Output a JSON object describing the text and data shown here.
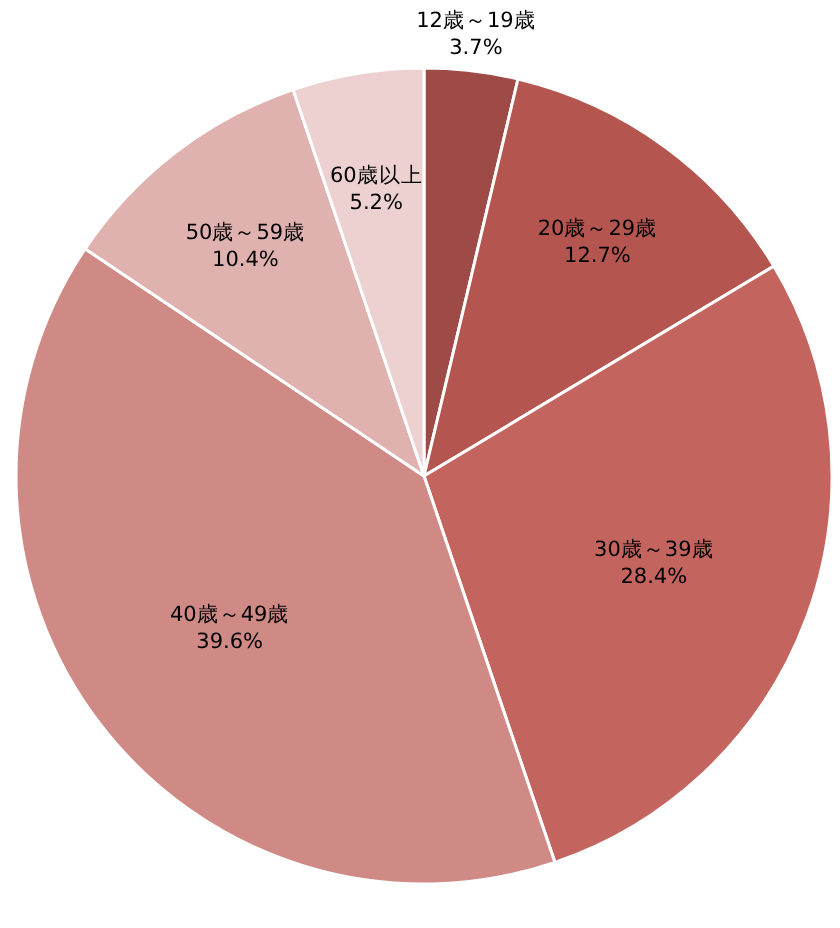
{
  "chart_data": {
    "type": "pie",
    "categories": [
      "12歳～19歳",
      "20歳～29歳",
      "30歳～39歳",
      "40歳～49歳",
      "50歳～59歳",
      "60歳以上"
    ],
    "values": [
      3.7,
      12.7,
      28.4,
      39.6,
      10.4,
      5.2
    ],
    "value_labels": [
      "3.7%",
      "12.7%",
      "28.4%",
      "39.6%",
      "10.4%",
      "5.2%"
    ],
    "colors": [
      "#9e4a46",
      "#b4554f",
      "#c4645e",
      "#d08a86",
      "#dfb2af",
      "#ecd1d0"
    ]
  }
}
